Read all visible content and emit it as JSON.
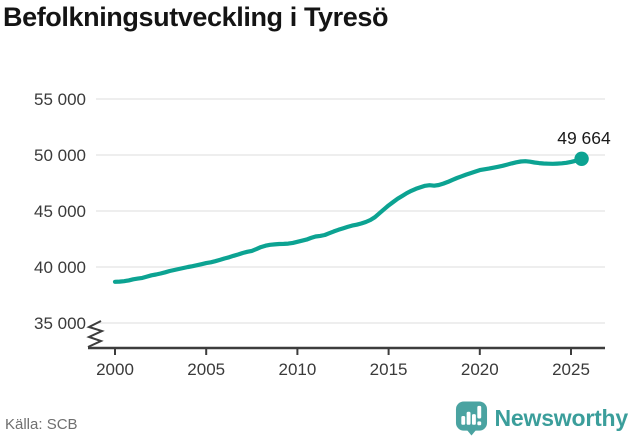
{
  "title": "Befolkningsutveckling i Tyresö",
  "source": "Källa: SCB",
  "brand": {
    "name": "Newsworthy",
    "icon": "bar-chart-speech-bubble-icon",
    "icon_color": "#4aa3a1",
    "text_color": "#3b9e9b"
  },
  "colors": {
    "line": "#0ca392",
    "grid": "#e4e4e4",
    "axis": "#3d3d3d",
    "tick_text": "#3a3a3a",
    "title_text": "#141414",
    "source_text": "#6f6f6f"
  },
  "chart_data": {
    "type": "line",
    "title": "Befolkningsutveckling i Tyresö",
    "xlabel": "",
    "ylabel": "",
    "grid": "horizontal",
    "y_axis_break": true,
    "ylim": [
      35000,
      55000
    ],
    "xlim": [
      2000,
      2025.58
    ],
    "y_ticks": [
      {
        "value": 55000,
        "label": "55 000"
      },
      {
        "value": 50000,
        "label": "50 000"
      },
      {
        "value": 45000,
        "label": "45 000"
      },
      {
        "value": 40000,
        "label": "40 000"
      },
      {
        "value": 35000,
        "label": "35 000"
      }
    ],
    "x_ticks": [
      {
        "value": 2000,
        "label": "2000"
      },
      {
        "value": 2005,
        "label": "2005"
      },
      {
        "value": 2010,
        "label": "2010"
      },
      {
        "value": 2015,
        "label": "2015"
      },
      {
        "value": 2020,
        "label": "2020"
      },
      {
        "value": 2025,
        "label": "2025"
      }
    ],
    "last_point": {
      "x": 2025.58,
      "y": 49664,
      "label": "49 664"
    },
    "points": [
      [
        2000,
        38680
      ],
      [
        2000.25,
        38700
      ],
      [
        2000.5,
        38730
      ],
      [
        2000.75,
        38800
      ],
      [
        2001,
        38900
      ],
      [
        2001.25,
        38960
      ],
      [
        2001.5,
        39030
      ],
      [
        2001.75,
        39140
      ],
      [
        2002,
        39260
      ],
      [
        2002.25,
        39330
      ],
      [
        2002.5,
        39420
      ],
      [
        2002.75,
        39530
      ],
      [
        2003,
        39640
      ],
      [
        2003.25,
        39730
      ],
      [
        2003.5,
        39820
      ],
      [
        2003.75,
        39910
      ],
      [
        2004,
        40000
      ],
      [
        2004.25,
        40070
      ],
      [
        2004.5,
        40160
      ],
      [
        2004.75,
        40250
      ],
      [
        2005,
        40350
      ],
      [
        2005.25,
        40420
      ],
      [
        2005.5,
        40520
      ],
      [
        2005.75,
        40630
      ],
      [
        2006,
        40760
      ],
      [
        2006.25,
        40870
      ],
      [
        2006.5,
        41000
      ],
      [
        2006.75,
        41120
      ],
      [
        2007,
        41250
      ],
      [
        2007.25,
        41360
      ],
      [
        2007.5,
        41440
      ],
      [
        2007.75,
        41600
      ],
      [
        2008,
        41780
      ],
      [
        2008.25,
        41900
      ],
      [
        2008.5,
        41980
      ],
      [
        2008.75,
        42020
      ],
      [
        2009,
        42050
      ],
      [
        2009.25,
        42060
      ],
      [
        2009.5,
        42090
      ],
      [
        2009.75,
        42150
      ],
      [
        2010,
        42250
      ],
      [
        2010.25,
        42350
      ],
      [
        2010.5,
        42450
      ],
      [
        2010.75,
        42600
      ],
      [
        2011,
        42720
      ],
      [
        2011.25,
        42780
      ],
      [
        2011.5,
        42860
      ],
      [
        2011.75,
        43020
      ],
      [
        2012,
        43180
      ],
      [
        2012.25,
        43320
      ],
      [
        2012.5,
        43450
      ],
      [
        2012.75,
        43580
      ],
      [
        2013,
        43700
      ],
      [
        2013.25,
        43780
      ],
      [
        2013.5,
        43880
      ],
      [
        2013.75,
        44020
      ],
      [
        2014,
        44200
      ],
      [
        2014.25,
        44450
      ],
      [
        2014.5,
        44800
      ],
      [
        2014.75,
        45150
      ],
      [
        2015,
        45500
      ],
      [
        2015.25,
        45800
      ],
      [
        2015.5,
        46100
      ],
      [
        2015.75,
        46350
      ],
      [
        2016,
        46600
      ],
      [
        2016.25,
        46800
      ],
      [
        2016.5,
        46980
      ],
      [
        2016.75,
        47120
      ],
      [
        2017,
        47250
      ],
      [
        2017.25,
        47300
      ],
      [
        2017.5,
        47260
      ],
      [
        2017.75,
        47320
      ],
      [
        2018,
        47450
      ],
      [
        2018.25,
        47600
      ],
      [
        2018.5,
        47780
      ],
      [
        2018.75,
        47950
      ],
      [
        2019,
        48100
      ],
      [
        2019.25,
        48250
      ],
      [
        2019.5,
        48380
      ],
      [
        2019.75,
        48520
      ],
      [
        2020,
        48650
      ],
      [
        2020.25,
        48720
      ],
      [
        2020.5,
        48790
      ],
      [
        2020.75,
        48870
      ],
      [
        2021,
        48950
      ],
      [
        2021.25,
        49040
      ],
      [
        2021.5,
        49140
      ],
      [
        2021.75,
        49250
      ],
      [
        2022,
        49350
      ],
      [
        2022.25,
        49420
      ],
      [
        2022.5,
        49450
      ],
      [
        2022.75,
        49400
      ],
      [
        2023,
        49330
      ],
      [
        2023.25,
        49280
      ],
      [
        2023.5,
        49240
      ],
      [
        2023.75,
        49220
      ],
      [
        2024,
        49210
      ],
      [
        2024.25,
        49230
      ],
      [
        2024.5,
        49260
      ],
      [
        2024.75,
        49300
      ],
      [
        2025,
        49380
      ],
      [
        2025.25,
        49480
      ],
      [
        2025.58,
        49664
      ]
    ]
  }
}
